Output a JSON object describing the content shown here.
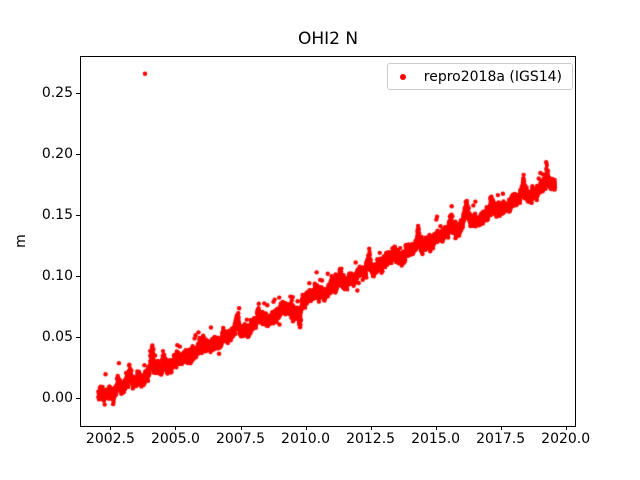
{
  "colors": {
    "background": "#ffffff",
    "text": "#000000",
    "spine": "#000000",
    "series_red": "#ff0000",
    "legend_border": "#cccccc"
  },
  "chart_data": {
    "type": "scatter",
    "title": "OHI2 N",
    "xlabel": "",
    "ylabel": "m",
    "xlim": [
      2001.33,
      2020.32
    ],
    "ylim": [
      -0.0223,
      0.2807
    ],
    "grid": false,
    "xticks": {
      "values": [
        2002.5,
        2005.0,
        2007.5,
        2010.0,
        2012.5,
        2015.0,
        2017.5,
        2020.0
      ],
      "labels": [
        "2002.5",
        "2005.0",
        "2007.5",
        "2010.0",
        "2012.5",
        "2015.0",
        "2017.5",
        "2020.0"
      ]
    },
    "yticks": {
      "values": [
        0.0,
        0.05,
        0.1,
        0.15,
        0.2,
        0.25
      ],
      "labels": [
        "0.00",
        "0.05",
        "0.10",
        "0.15",
        "0.20",
        "0.25"
      ]
    },
    "legend": {
      "position": "upper right",
      "entries": [
        {
          "label": "repro2018a (IGS14)",
          "marker": "dot",
          "color": "#ff0000"
        }
      ]
    },
    "series": [
      {
        "name": "repro2018a (IGS14)",
        "color": "#ff0000",
        "marker": "dot",
        "marker_px": 4.4,
        "trend": {
          "start_year": 2002.0,
          "end_year": 2019.55,
          "start_value": 0.0,
          "end_value": 0.178,
          "rate_m_per_yr": 0.0101
        },
        "sampled_trend": {
          "years": [
            2002,
            2003,
            2004,
            2005,
            2006,
            2007,
            2008,
            2009,
            2010,
            2011,
            2012,
            2013,
            2014,
            2015,
            2016,
            2017,
            2018,
            2019,
            2019.55
          ],
          "values": [
            0.0,
            0.01,
            0.02,
            0.03,
            0.04,
            0.051,
            0.061,
            0.071,
            0.081,
            0.091,
            0.101,
            0.111,
            0.121,
            0.131,
            0.141,
            0.152,
            0.162,
            0.172,
            0.178
          ]
        },
        "scatter_model": {
          "seed": 7,
          "points_per_year": 300,
          "noise_sd": 0.002,
          "pos_skew_prob": 0.3,
          "pos_skew_max": 0.003,
          "wander": [
            {
              "period": 1.0,
              "amp": 0.0016,
              "phase": 0.7
            },
            {
              "period": 0.37,
              "amp": 0.0013,
              "phase": 2.1
            },
            {
              "period": 0.11,
              "amp": 0.001,
              "phase": 4.0
            }
          ],
          "upper_tail_prob": 0.013,
          "upper_tail_range": [
            0.004,
            0.015
          ],
          "lower_tail_prob": 0.004,
          "lower_tail_range": [
            0.003,
            0.008
          ],
          "spikes": [
            {
              "t": 2002.75,
              "amp": 0.008,
              "width": 0.05
            },
            {
              "t": 2003.2,
              "amp": 0.01,
              "width": 0.04
            },
            {
              "t": 2004.05,
              "amp": 0.021,
              "width": 0.05
            },
            {
              "t": 2004.5,
              "amp": 0.012,
              "width": 0.04
            },
            {
              "t": 2005.9,
              "amp": 0.009,
              "width": 0.05
            },
            {
              "t": 2006.8,
              "amp": 0.008,
              "width": 0.04
            },
            {
              "t": 2007.35,
              "amp": 0.016,
              "width": 0.05
            },
            {
              "t": 2008.15,
              "amp": 0.011,
              "width": 0.04
            },
            {
              "t": 2009.5,
              "amp": -0.008,
              "width": 0.1
            },
            {
              "t": 2009.75,
              "amp": -0.018,
              "width": 0.04
            },
            {
              "t": 2010.35,
              "amp": 0.011,
              "width": 0.04
            },
            {
              "t": 2011.3,
              "amp": 0.009,
              "width": 0.05
            },
            {
              "t": 2012.4,
              "amp": 0.013,
              "width": 0.05
            },
            {
              "t": 2013.35,
              "amp": 0.012,
              "width": 0.04
            },
            {
              "t": 2014.3,
              "amp": 0.012,
              "width": 0.05
            },
            {
              "t": 2015.55,
              "amp": 0.014,
              "width": 0.07
            },
            {
              "t": 2016.15,
              "amp": 0.015,
              "width": 0.09
            },
            {
              "t": 2017.1,
              "amp": 0.009,
              "width": 0.05
            },
            {
              "t": 2018.35,
              "amp": 0.013,
              "width": 0.07
            },
            {
              "t": 2019.25,
              "amp": 0.012,
              "width": 0.05
            }
          ],
          "outliers": [
            [
              2003.79,
              0.267
            ]
          ]
        }
      }
    ]
  }
}
